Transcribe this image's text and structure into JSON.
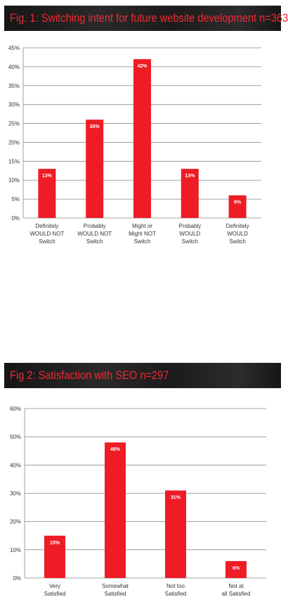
{
  "colors": {
    "bar": "#ee1c25",
    "banner_text": "#ee2a34",
    "grid": "#8a8a8a"
  },
  "chart_data": [
    {
      "type": "bar",
      "title": "Fig. 1: Switching intent for future website development n=363",
      "xlabel": "",
      "ylabel": "",
      "ylim": [
        0,
        45
      ],
      "yticks": [
        "0%",
        "5%",
        "10%",
        "15%",
        "20%",
        "25%",
        "30%",
        "35%",
        "40%",
        "45%"
      ],
      "grid": true,
      "categories": [
        [
          "Definitely",
          "WOULD NOT",
          "Switch"
        ],
        [
          "Probably",
          "WOULD NOT",
          "Switch"
        ],
        [
          "Might or",
          "Might NOT",
          "Switch"
        ],
        [
          "Probably",
          "WOULD",
          "Switch"
        ],
        [
          "Definitely",
          "WOULD",
          "Switch"
        ]
      ],
      "values": [
        13,
        26,
        42,
        13,
        6
      ],
      "data_labels": [
        "13%",
        "26%",
        "42%",
        "13%",
        "6%"
      ]
    },
    {
      "type": "bar",
      "title": "Fig 2: Satisfaction with SEO n=297",
      "xlabel": "",
      "ylabel": "",
      "ylim": [
        0,
        60
      ],
      "yticks": [
        "0%",
        "10%",
        "20%",
        "30%",
        "40%",
        "50%",
        "60%"
      ],
      "grid": true,
      "categories": [
        [
          "Very",
          "Satisfied"
        ],
        [
          "Somewhat",
          "Satisfied"
        ],
        [
          "Not too",
          "Satisfied"
        ],
        [
          "Not at",
          "all Satisfied"
        ]
      ],
      "values": [
        15,
        48,
        31,
        6
      ],
      "data_labels": [
        "15%",
        "48%",
        "31%",
        "6%"
      ]
    }
  ]
}
